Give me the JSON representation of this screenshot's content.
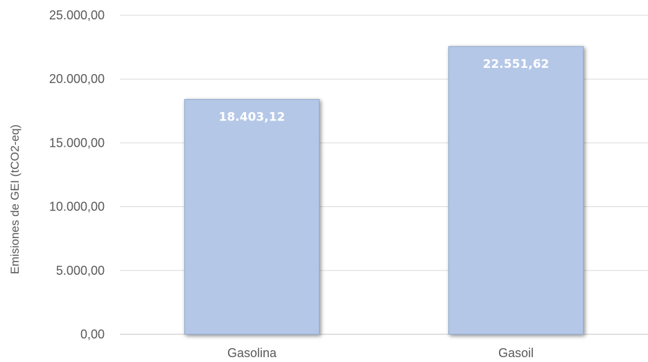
{
  "chart_data": {
    "type": "bar",
    "title": "",
    "xlabel": "",
    "ylabel": "Emisiones de GEI (tCO2-eq)",
    "categories": [
      "Gasolina",
      "Gasoil"
    ],
    "values": [
      18403.12,
      22551.62
    ],
    "value_labels": [
      "18.403,12",
      "22.551,62"
    ],
    "ylim": [
      0,
      25000
    ],
    "yticks": [
      0,
      5000,
      10000,
      15000,
      20000,
      25000
    ],
    "ytick_labels": [
      "0,00",
      "5.000,00",
      "10.000,00",
      "15.000,00",
      "20.000,00",
      "25.000,00"
    ],
    "grid": true,
    "legend": "none",
    "colors": {
      "bar_fill": "#b4c7e7",
      "bar_edge": "#8fa6cc",
      "grid": "#d9d9d9",
      "axis": "#bfbfbf",
      "text": "#595959",
      "data_label": "#ffffff"
    }
  }
}
